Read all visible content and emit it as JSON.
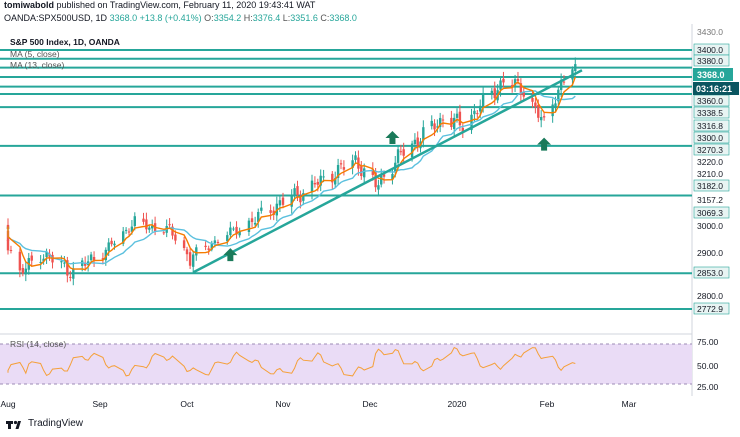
{
  "header": {
    "author": "tomiwabold",
    "published_text": "published on TradingView.com, February 11, 2020 19:43:41 WAT"
  },
  "quote": {
    "symbol": "OANDA:SPX500USD, 1D",
    "price": "3368.0",
    "change": "+13.8 (+0.41%)",
    "open_label": "O:",
    "open": "3354.2",
    "high_label": "H:",
    "high": "3376.4",
    "low_label": "L:",
    "low": "3351.6",
    "close_label": "C:",
    "close": "3368.0"
  },
  "legend": {
    "title": "S&P 500 Index, 1D, OANDA",
    "ma5": "MA (5, close)",
    "ma13": "MA (13, close)",
    "rsi": "RSI (14, close)"
  },
  "footer": {
    "brand": "TradingView"
  },
  "colors": {
    "up": "#26a69a",
    "down": "#ef5350",
    "ma5": "#f57c00",
    "ma13": "#5bc0de",
    "level": "#26a69a",
    "trend": "#26a69a",
    "rsi_line": "#f5a03a",
    "rsi_band": "#eadcf6",
    "price_tag": "#26a69a",
    "timer_tag": "#0a5560"
  },
  "chart_data": [
    {
      "type": "candlestick",
      "title": "S&P 500 Index, 1D, OANDA",
      "x_ticks": [
        "Aug",
        "Sep",
        "Oct",
        "Nov",
        "Dec",
        "2020",
        "Feb",
        "Mar"
      ],
      "y_ticks": [
        "3400.0",
        "3380.0",
        "3360.0",
        "3338.5",
        "3316.8",
        "3300.0",
        "3270.3",
        "3220.0",
        "3210.0",
        "3182.0",
        "3157.2",
        "3069.3",
        "3000.0",
        "2900.0",
        "2853.0",
        "2800.0",
        "2772.9"
      ],
      "top_tick": "3430.0",
      "price_tag": "3368.0",
      "timer_tag": "03:16:21",
      "horizontal_levels": [
        3400.0,
        3380.0,
        3360.0,
        3338.5,
        3316.8,
        3300.0,
        3270.3,
        3182.0,
        3069.3,
        2853.0,
        2772.9
      ],
      "trend_line": {
        "from": {
          "date": "2019-10-03",
          "price": 2855
        },
        "to": {
          "date": "2020-02-07",
          "price": 3338
        }
      },
      "arrows_up": [
        {
          "date": "2019-10-15",
          "price": 2895
        },
        {
          "date": "2019-12-09",
          "price": 3200
        },
        {
          "date": "2020-01-31",
          "price": 3185
        }
      ],
      "ohlc_sample": [
        {
          "d": "Aug",
          "o": 2950,
          "h": 2990,
          "l": 2820,
          "c": 2880
        },
        {
          "d": "Sep",
          "o": 2920,
          "h": 3020,
          "l": 2900,
          "c": 3005
        },
        {
          "d": "Oct",
          "o": 2960,
          "h": 2990,
          "l": 2860,
          "c": 2890
        },
        {
          "d": "Nov",
          "o": 3070,
          "h": 3085,
          "l": 3060,
          "c": 3080
        },
        {
          "d": "Dec",
          "o": 3140,
          "h": 3160,
          "l": 3105,
          "c": 3150
        },
        {
          "d": "2020",
          "o": 3230,
          "h": 3260,
          "l": 3220,
          "c": 3255
        },
        {
          "d": "Feb",
          "o": 3290,
          "h": 3345,
          "l": 3285,
          "c": 3335
        },
        {
          "d": "Feb 11",
          "o": 3354.2,
          "h": 3376.4,
          "l": 3351.6,
          "c": 3368.0
        }
      ]
    },
    {
      "type": "line",
      "title": "RSI (14, close)",
      "y_ticks": [
        "75.00",
        "50.00",
        "25.00"
      ],
      "ylim": [
        20,
        85
      ]
    }
  ]
}
